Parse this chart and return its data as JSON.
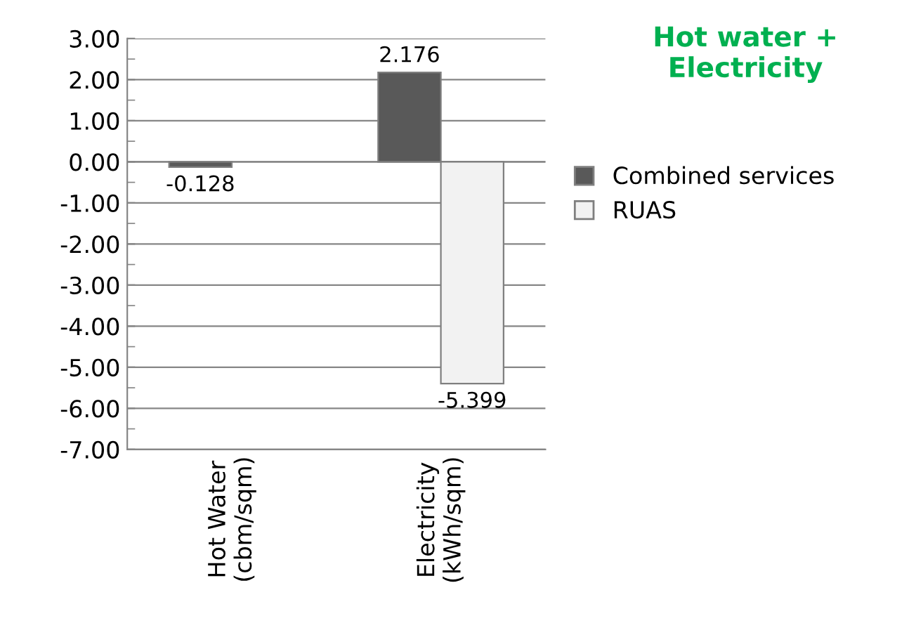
{
  "chart_data": {
    "type": "bar",
    "title": "Hot water +\nElectricity",
    "categories": [
      "Hot Water\n(cbm/sqm)",
      "Electricity\n(kWh/sqm)"
    ],
    "series": [
      {
        "name": "Combined services",
        "color": "#595959",
        "values": [
          -0.128,
          2.176
        ]
      },
      {
        "name": "RUAS",
        "color": "#f2f2f2",
        "values": [
          null,
          -5.399
        ]
      }
    ],
    "ylim": [
      -7,
      3
    ],
    "yticks": [
      {
        "value": -7,
        "label": "-7.00"
      },
      {
        "value": -6,
        "label": "-6.00"
      },
      {
        "value": -5,
        "label": "-5.00"
      },
      {
        "value": -4,
        "label": "-4.00"
      },
      {
        "value": -3,
        "label": "-3.00"
      },
      {
        "value": -2,
        "label": "-2.00"
      },
      {
        "value": -1,
        "label": "-1.00"
      },
      {
        "value": 0,
        "label": "0.00"
      },
      {
        "value": 1,
        "label": "1.00"
      },
      {
        "value": 2,
        "label": "2.00"
      },
      {
        "value": 3,
        "label": "3.00"
      }
    ],
    "grid": "y",
    "legend": "right",
    "data_labels": true
  }
}
